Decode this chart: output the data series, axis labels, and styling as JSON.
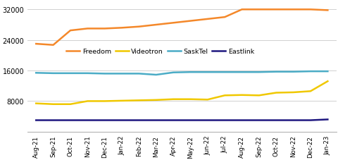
{
  "x_labels": [
    "Aug-21",
    "Sep-21",
    "Oct-21",
    "Nov-21",
    "Dec-21",
    "Jan-22",
    "Feb-22",
    "Mar-22",
    "Apr-22",
    "May-22",
    "Jun-22",
    "Jul-22",
    "Aug-22",
    "Sep-22",
    "Oct-22",
    "Nov-22",
    "Dec-22",
    "Jan-23"
  ],
  "Freedom": [
    23000,
    22700,
    26500,
    27000,
    27000,
    27200,
    27500,
    28000,
    28500,
    29000,
    29500,
    30000,
    32000,
    32000,
    32000,
    32000,
    32000,
    31800
  ],
  "Videotron": [
    7400,
    7200,
    7200,
    8000,
    8000,
    8100,
    8200,
    8300,
    8500,
    8500,
    8400,
    9500,
    9600,
    9500,
    10200,
    10300,
    10600,
    13200
  ],
  "SaskTel": [
    15400,
    15300,
    15300,
    15300,
    15200,
    15200,
    15200,
    14900,
    15500,
    15600,
    15600,
    15600,
    15600,
    15600,
    15700,
    15700,
    15800,
    15800
  ],
  "Eastlink": [
    3000,
    3000,
    3000,
    3000,
    3000,
    3000,
    3000,
    3000,
    3000,
    3000,
    3000,
    3000,
    3000,
    3000,
    3000,
    3000,
    3000,
    3200
  ],
  "colors": {
    "Freedom": "#f4882a",
    "Videotron": "#f0c800",
    "SaskTel": "#4bacc6",
    "Eastlink": "#1f1880"
  },
  "ylim": [
    0,
    34000
  ],
  "yticks": [
    8000,
    16000,
    24000,
    32000
  ],
  "bg_color": "#ffffff",
  "grid_color": "#d0d0d0",
  "linewidth": 1.8
}
